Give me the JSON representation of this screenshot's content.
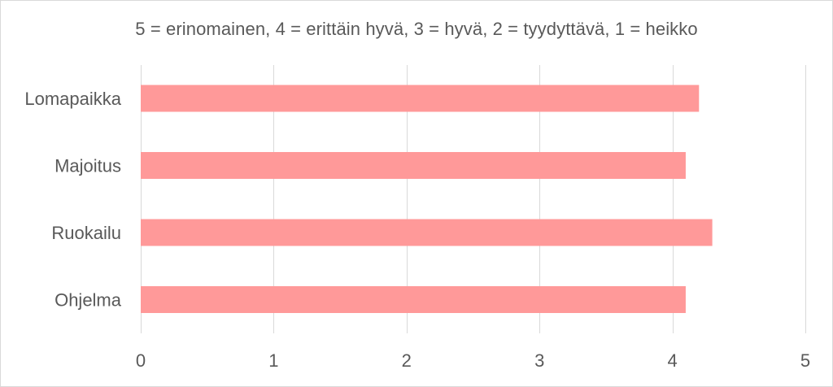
{
  "chart_data": {
    "type": "bar",
    "orientation": "horizontal",
    "title": "5 = erinomainen, 4 = erittäin hyvä, 3 = hyvä, 2 = tyydyttävä, 1 = heikko",
    "categories": [
      "Lomapaikka",
      "Majoitus",
      "Ruokailu",
      "Ohjelma"
    ],
    "values": [
      4.2,
      4.1,
      4.3,
      4.1
    ],
    "xlim": [
      0,
      5
    ],
    "xticks": [
      "0",
      "1",
      "2",
      "3",
      "4",
      "5"
    ],
    "xlabel": "",
    "ylabel": "",
    "grid": true,
    "legend": "none",
    "colors": {
      "bar": "#ff9999",
      "grid": "#d9d9d9",
      "text": "#595959"
    }
  }
}
